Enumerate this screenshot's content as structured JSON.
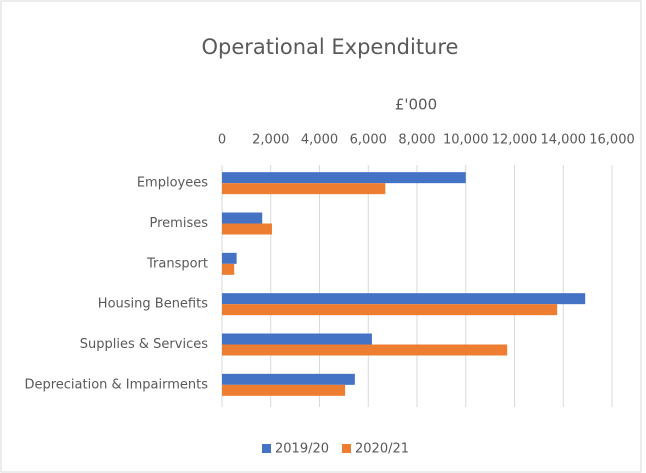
{
  "chart_data": {
    "type": "barh",
    "title": "Operational Expenditure",
    "x_label": "£'000",
    "categories": [
      "Employees",
      "Premises",
      "Transport",
      "Housing Benefits",
      "Supplies & Services",
      "Depreciation & Impairments"
    ],
    "series": [
      {
        "name": "2019/20",
        "color": "#4472c4",
        "values": [
          10000,
          1650,
          600,
          14900,
          6150,
          5450
        ]
      },
      {
        "name": "2020/21",
        "color": "#ed7d31",
        "values": [
          6700,
          2050,
          500,
          13750,
          11700,
          5050
        ]
      }
    ],
    "xlim": [
      0,
      16000
    ],
    "xticks": [
      0,
      {
        "value": 2000,
        "label": "2,000"
      },
      {
        "value": 4000,
        "label": "4,000"
      },
      {
        "value": 6000,
        "label": "6,000"
      },
      {
        "value": 8000,
        "label": "8,000"
      },
      {
        "value": 10000,
        "label": "10,000"
      },
      {
        "value": 12000,
        "label": "12,000"
      },
      {
        "value": 14000,
        "label": "14,000"
      },
      {
        "value": 16000,
        "label": "16,000"
      }
    ],
    "grid": true,
    "legend": "bottom"
  }
}
